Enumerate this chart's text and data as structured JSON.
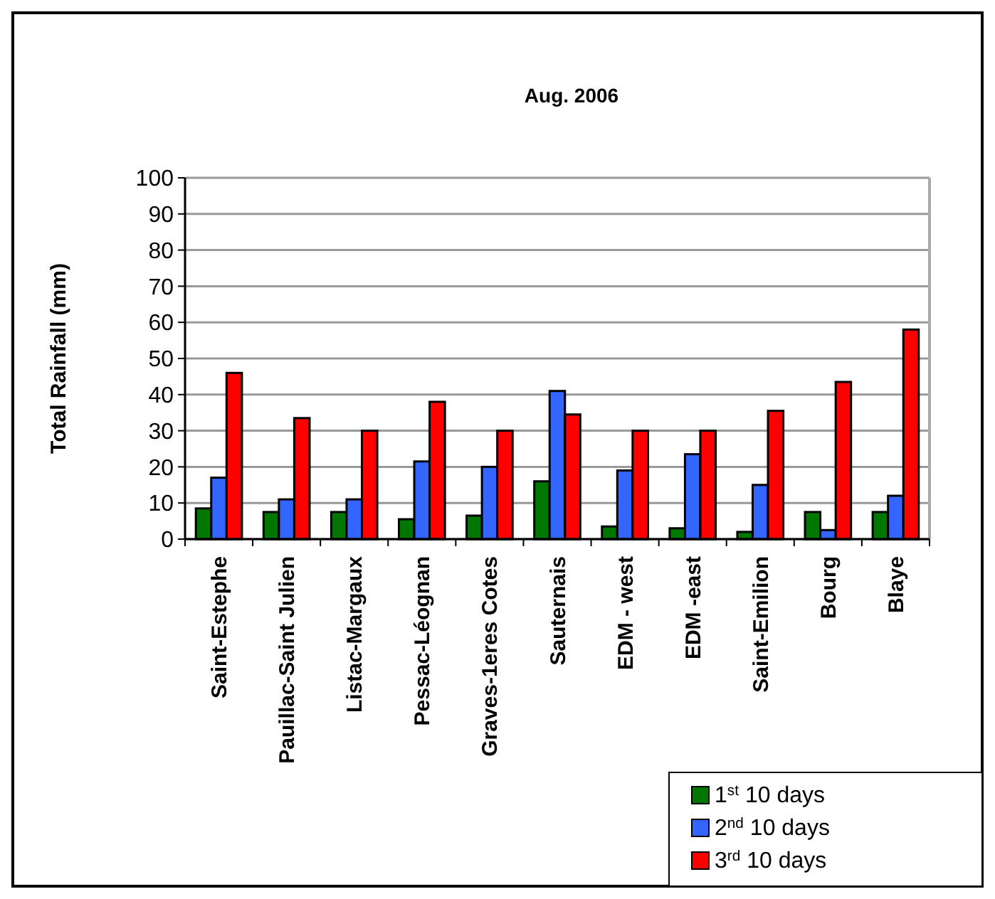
{
  "chart_data": {
    "type": "bar",
    "title": "Aug.  2006",
    "ylabel": "Total Rainfall (mm)",
    "categories": [
      "Saint-Estephe",
      "Pauillac-Saint Julien",
      "Listac-Margaux",
      "Pessac-Léognan",
      "Graves-1eres Cotes",
      "Sauternais",
      "EDM  - west",
      "EDM -east",
      "Saint-Emilion",
      "Bourg",
      "Blaye"
    ],
    "series": [
      {
        "name": "1$^{st}$ 10 days",
        "color": "#007700",
        "values": [
          8.5,
          7.5,
          7.5,
          5.5,
          6.5,
          16,
          3.5,
          3,
          2,
          7.5,
          7.5
        ]
      },
      {
        "name": "2$^{nd}$ 10 days",
        "color": "#3366ff",
        "values": [
          17,
          11,
          11,
          21.5,
          20,
          41,
          19,
          23.5,
          15,
          2.5,
          12
        ]
      },
      {
        "name": "3$^{rd}$ 10 days",
        "color": "#ff0000",
        "values": [
          46,
          33.5,
          30,
          38,
          30,
          34.5,
          30,
          30,
          35.5,
          43.5,
          58
        ]
      }
    ],
    "ylim": [
      0,
      100
    ],
    "yticks": [
      0,
      10,
      20,
      30,
      40,
      50,
      60,
      70,
      80,
      90,
      100
    ],
    "grid": "y",
    "legend": "bottom right"
  }
}
